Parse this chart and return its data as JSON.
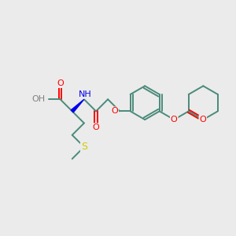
{
  "bg_color": "#ebebeb",
  "bond_color": "#4a8a7a",
  "bond_width": 1.4,
  "atom_colors": {
    "O": "#ff0000",
    "N": "#0000ee",
    "S": "#cccc00",
    "H": "#808080"
  },
  "figsize": [
    3.0,
    3.0
  ],
  "dpi": 100
}
